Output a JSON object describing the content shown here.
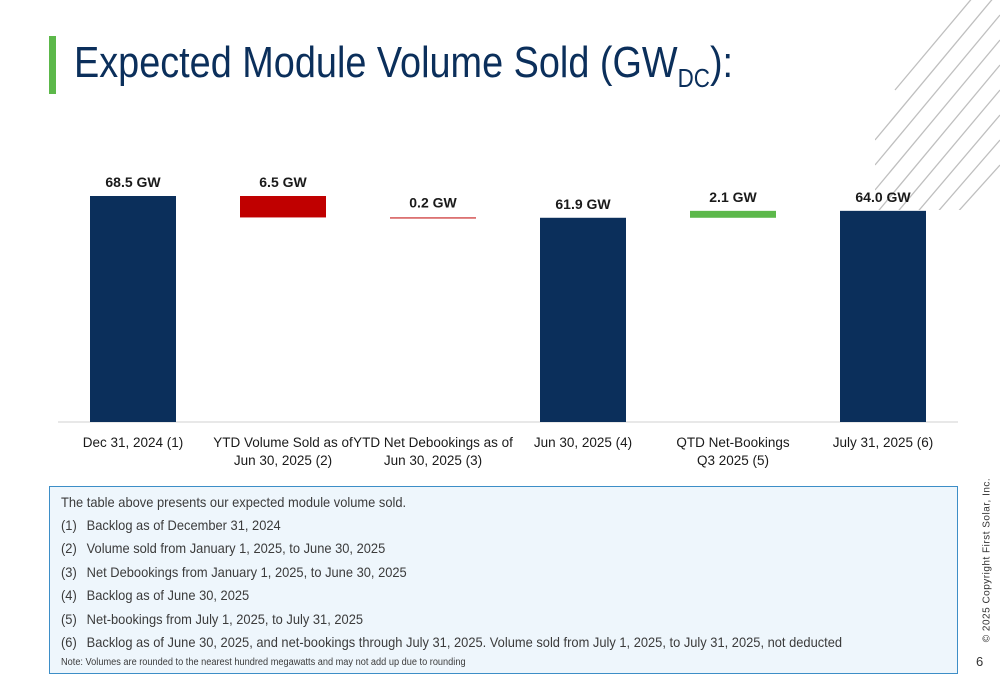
{
  "slide": {
    "title_main": "Expected Module Volume Sold (GW",
    "title_sub": "DC",
    "title_end": "):",
    "copyright": "© 2025 Copyright First Solar, Inc.",
    "page_number": "6"
  },
  "colors": {
    "navy": "#0b2f5b",
    "red": "#c00000",
    "green": "#5cb84a",
    "accent": "#5cb84a"
  },
  "chart_data": {
    "type": "bar",
    "subtype": "waterfall",
    "unit": "GW",
    "categories": [
      [
        "Dec 31, 2024  (1)"
      ],
      [
        "YTD Volume Sold as of",
        "Jun 30, 2025  (2)"
      ],
      [
        "YTD Net Debookings as of",
        "Jun 30, 2025  (3)"
      ],
      [
        "Jun 30, 2025  (4)"
      ],
      [
        "QTD Net-Bookings",
        "Q3 2025  (5)"
      ],
      [
        "July 31, 2025  (6)"
      ]
    ],
    "bars": [
      {
        "kind": "total",
        "start": 0,
        "end": 68.5,
        "value": 68.5,
        "label": "68.5 GW",
        "color": "#0b2f5b"
      },
      {
        "kind": "decrease",
        "start": 68.5,
        "end": 62.0,
        "value": 6.5,
        "label": "6.5 GW",
        "color": "#c00000"
      },
      {
        "kind": "decrease",
        "start": 62.0,
        "end": 61.9,
        "value": 0.2,
        "label": "0.2 GW",
        "color": "#c00000"
      },
      {
        "kind": "total",
        "start": 0,
        "end": 61.9,
        "value": 61.9,
        "label": "61.9 GW",
        "color": "#0b2f5b"
      },
      {
        "kind": "increase",
        "start": 61.9,
        "end": 64.0,
        "value": 2.1,
        "label": "2.1 GW",
        "color": "#5cb84a"
      },
      {
        "kind": "total",
        "start": 0,
        "end": 64.0,
        "value": 64.0,
        "label": "64.0 GW",
        "color": "#0b2f5b"
      }
    ],
    "ylim": [
      0,
      68.5
    ],
    "grid": false,
    "legend": "none"
  },
  "notes": {
    "intro": "The table above presents our expected module volume sold.",
    "items": [
      {
        "num": "(1)",
        "text": "Backlog as of December 31, 2024"
      },
      {
        "num": "(2)",
        "text": "Volume sold from January 1, 2025, to June 30, 2025"
      },
      {
        "num": "(3)",
        "text": "Net Debookings from January 1, 2025, to June 30, 2025"
      },
      {
        "num": "(4)",
        "text": "Backlog as of June 30, 2025"
      },
      {
        "num": "(5)",
        "text": "Net-bookings from July 1, 2025, to July 31, 2025"
      },
      {
        "num": "(6)",
        "text": "Backlog as of June 30, 2025, and net-bookings through July 31, 2025.  Volume sold from July 1, 2025, to July 31, 2025, not deducted"
      }
    ],
    "footnote": "Note: Volumes are rounded to the nearest hundred megawatts and may not add up due to rounding"
  }
}
